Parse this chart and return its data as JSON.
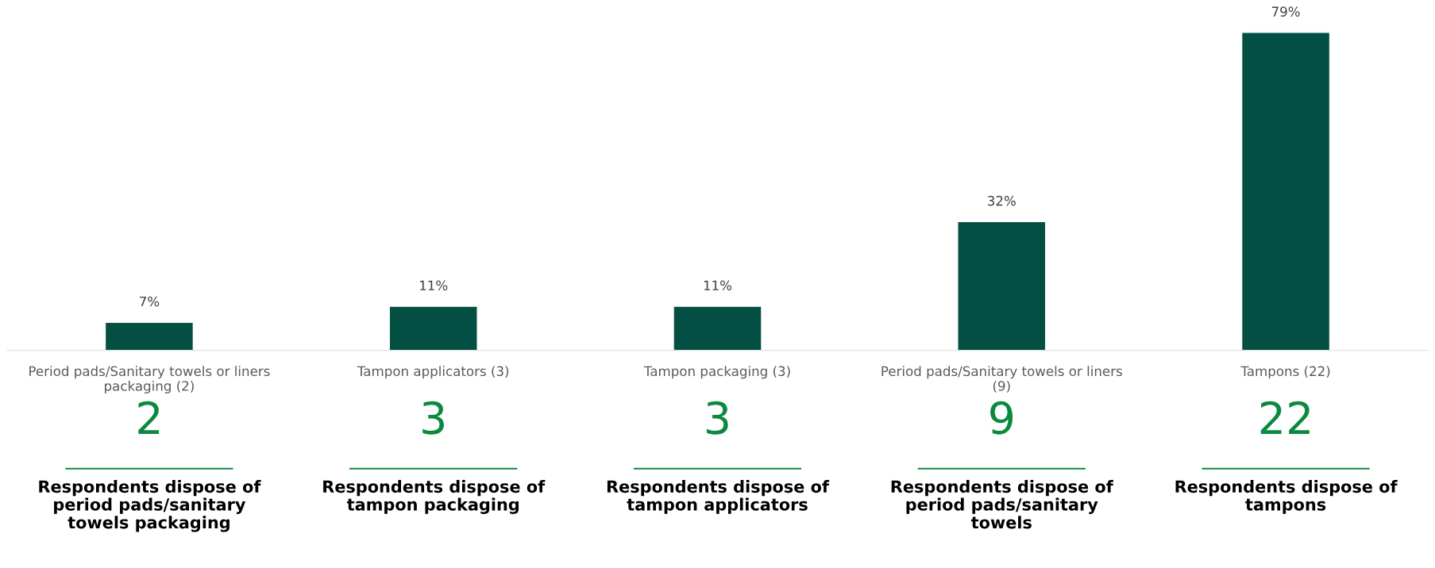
{
  "chart_data": {
    "type": "bar",
    "categories": [
      "Period pads/Sanitary towels or liners packaging (2)",
      "Tampon applicators (3)",
      "Tampon packaging (3)",
      "Period pads/Sanitary towels or liners (9)",
      "Tampons (22)"
    ],
    "values": [
      7,
      11,
      11,
      32,
      79
    ],
    "value_labels": [
      "7%",
      "11%",
      "11%",
      "32%",
      "79%"
    ],
    "color": "#034f44",
    "annotations": [
      "2",
      "Respondents dispose of period pads/sanitary towels packaging",
      "3",
      "Respondents dispose of tampon packaging",
      "3",
      "Respondents dispose of tampon applicators",
      "9",
      "Respondents dispose of period pads/sanitary towels",
      "22",
      "Respondents dispose of tampons"
    ],
    "grid": false,
    "legend": false
  }
}
